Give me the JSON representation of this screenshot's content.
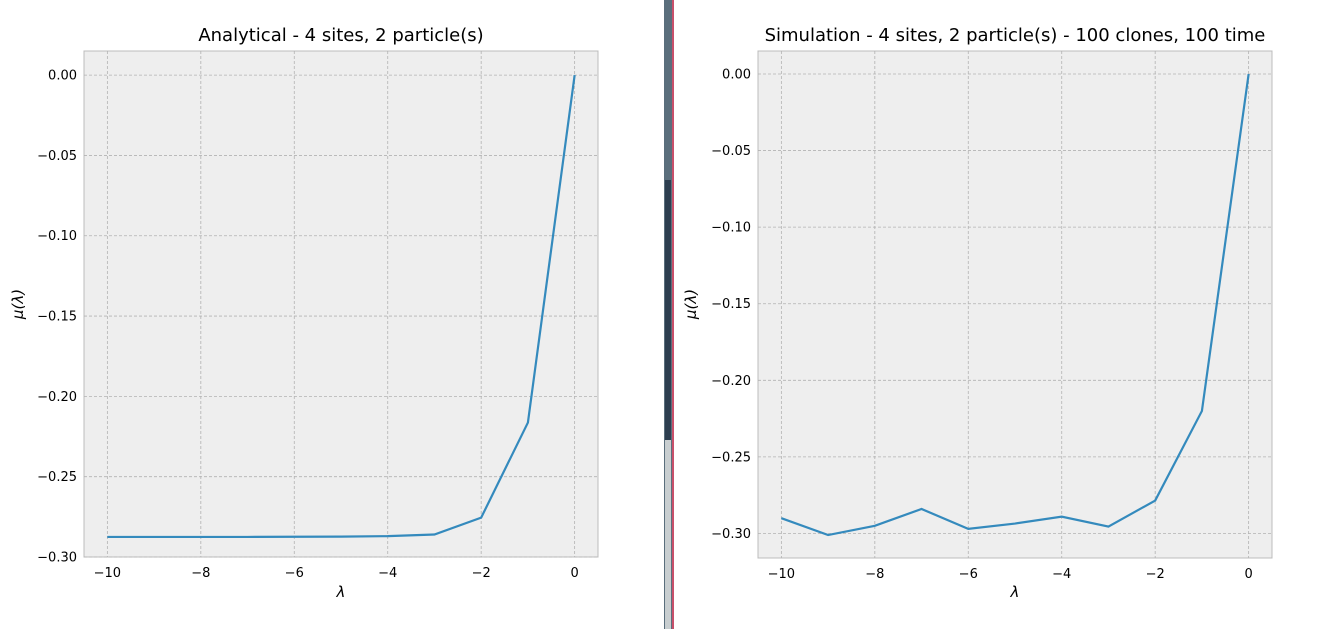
{
  "chart_data": [
    {
      "type": "line",
      "title": "Analytical - 4 sites, 2 particle(s)",
      "xlabel": "λ",
      "ylabel": "μ(λ)",
      "xlim": [
        -10.5,
        0.5
      ],
      "ylim": [
        -0.3,
        0.015
      ],
      "xticks": [
        -10,
        -8,
        -6,
        -4,
        -2,
        0
      ],
      "yticks": [
        0.0,
        -0.05,
        -0.1,
        -0.15,
        -0.2,
        -0.25,
        -0.3
      ],
      "xtick_labels": [
        "−10",
        "−8",
        "−6",
        "−4",
        "−2",
        "0"
      ],
      "ytick_labels": [
        "0.00",
        "−0.05",
        "−0.10",
        "−0.15",
        "−0.20",
        "−0.25",
        "−0.30"
      ],
      "grid": true,
      "color": "#348abd",
      "x": [
        -10,
        -9,
        -8,
        -7,
        -6,
        -5,
        -4,
        -3,
        -2,
        -1,
        0
      ],
      "y": [
        -0.2875,
        -0.2875,
        -0.2875,
        -0.2875,
        -0.2874,
        -0.2873,
        -0.287,
        -0.286,
        -0.2755,
        -0.2163,
        0.0
      ]
    },
    {
      "type": "line",
      "title": "Simulation - 4 sites, 2 particle(s) - 100 clones, 100 time",
      "xlabel": "λ",
      "ylabel": "μ(λ)",
      "xlim": [
        -10.5,
        0.5
      ],
      "ylim": [
        -0.316,
        0.015
      ],
      "xticks": [
        -10,
        -8,
        -6,
        -4,
        -2,
        0
      ],
      "yticks": [
        0.0,
        -0.05,
        -0.1,
        -0.15,
        -0.2,
        -0.25,
        -0.3
      ],
      "xtick_labels": [
        "−10",
        "−8",
        "−6",
        "−4",
        "−2",
        "0"
      ],
      "ytick_labels": [
        "0.00",
        "−0.05",
        "−0.10",
        "−0.15",
        "−0.20",
        "−0.25",
        "−0.30"
      ],
      "grid": true,
      "color": "#348abd",
      "x": [
        -10,
        -9,
        -8,
        -7,
        -6,
        -5,
        -4,
        -3,
        -2,
        -1,
        0
      ],
      "y": [
        -0.29,
        -0.301,
        -0.295,
        -0.284,
        -0.297,
        -0.2935,
        -0.289,
        -0.2955,
        -0.2785,
        -0.22,
        0.0
      ]
    }
  ],
  "colors": {
    "plot_bg": "#eeeeee",
    "grid": "#b2b2b2",
    "spine": "#bcbcbc",
    "divider_border": "#c8506a"
  }
}
